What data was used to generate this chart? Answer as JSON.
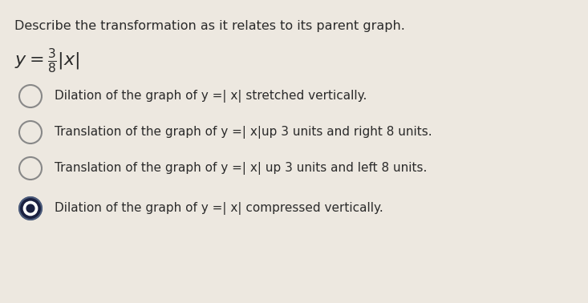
{
  "title": "Describe the transformation as it relates to its parent graph.",
  "options": [
    "Dilation of the graph of y =| x| stretched vertically.",
    "Translation of the graph of y =| x|up 3 units and right 8 units.",
    "Translation of the graph of y =| x| up 3 units and left 8 units.",
    "Dilation of the graph of y =| x| compressed vertically."
  ],
  "selected_index": 3,
  "bg_color": "#ede8e0",
  "text_color": "#2a2a2a",
  "title_fontsize": 11.5,
  "option_fontsize": 11,
  "equation_fontsize": 14,
  "header_color": "#1a1a2e",
  "radio_outer_color": "#4a5a7a",
  "radio_inner_color": "#1a2040",
  "radio_white": "#ffffff"
}
